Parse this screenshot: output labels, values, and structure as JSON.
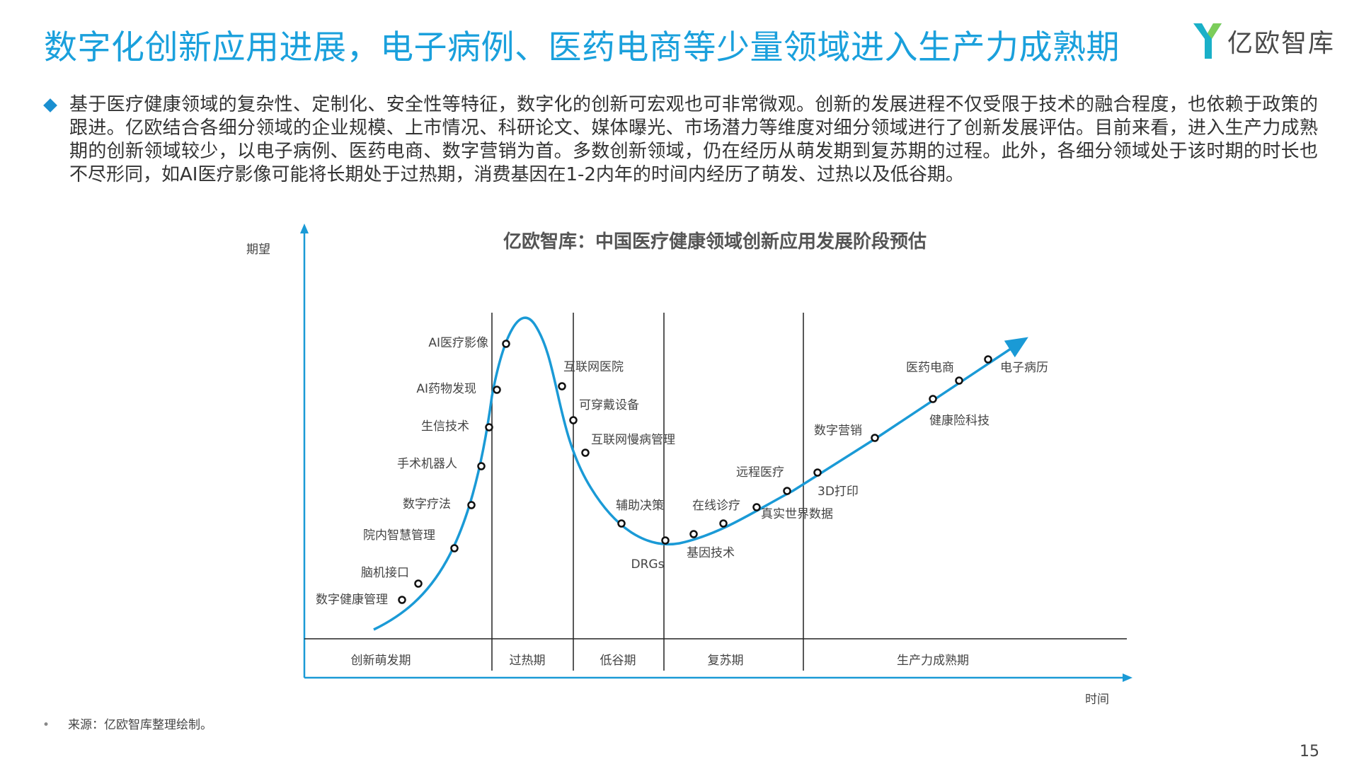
{
  "header": {
    "title": "数字化创新应用进展，电子病例、医药电商等少量领域进入生产力成熟期",
    "logo_text": "亿欧智库"
  },
  "intro": {
    "text": "基于医疗健康领域的复杂性、定制化、安全性等特征，数字化的创新可宏观也可非常微观。创新的发展进程不仅受限于技术的融合程度，也依赖于政策的跟进。亿欧结合各细分领域的企业规模、上市情况、科研论文、媒体曝光、市场潜力等维度对细分领域进行了创新发展评估。目前来看，进入生产力成熟期的创新领域较少，以电子病例、医药电商、数字营销为首。多数创新领域，仍在经历从萌发期到复苏期的过程。此外，各细分领域处于该时期的时长也不尽形同，如AI医疗影像可能将长期处于过热期，消费基因在1-2内年的时间内经历了萌发、过热以及低谷期。"
  },
  "diagram": {
    "title": "亿欧智库：中国医疗健康领域创新应用发展阶段预估",
    "y_axis_label": "期望",
    "x_axis_label": "时间",
    "phases": [
      {
        "label": "创新萌发期"
      },
      {
        "label": "过热期"
      },
      {
        "label": "低谷期"
      },
      {
        "label": "复苏期"
      },
      {
        "label": "生产力成熟期"
      }
    ],
    "points": [
      {
        "label": "数字健康管理",
        "phase": "创新萌发期"
      },
      {
        "label": "脑机接口",
        "phase": "创新萌发期"
      },
      {
        "label": "院内智慧管理",
        "phase": "创新萌发期"
      },
      {
        "label": "数字疗法",
        "phase": "创新萌发期"
      },
      {
        "label": "手术机器人",
        "phase": "创新萌发期"
      },
      {
        "label": "生信技术",
        "phase": "创新萌发期"
      },
      {
        "label": "AI药物发现",
        "phase": "过热期"
      },
      {
        "label": "AI医疗影像",
        "phase": "过热期"
      },
      {
        "label": "互联网医院",
        "phase": "低谷期"
      },
      {
        "label": "可穿戴设备",
        "phase": "低谷期"
      },
      {
        "label": "互联网慢病管理",
        "phase": "低谷期"
      },
      {
        "label": "辅助决策",
        "phase": "低谷期"
      },
      {
        "label": "DRGs",
        "phase": "复苏期"
      },
      {
        "label": "基因技术",
        "phase": "复苏期"
      },
      {
        "label": "在线诊疗",
        "phase": "复苏期"
      },
      {
        "label": "真实世界数据",
        "phase": "复苏期"
      },
      {
        "label": "远程医疗",
        "phase": "复苏期"
      },
      {
        "label": "3D打印",
        "phase": "生产力成熟期"
      },
      {
        "label": "数字营销",
        "phase": "生产力成熟期"
      },
      {
        "label": "健康险科技",
        "phase": "生产力成熟期"
      },
      {
        "label": "医药电商",
        "phase": "生产力成熟期"
      },
      {
        "label": "电子病历",
        "phase": "生产力成熟期"
      }
    ],
    "curve_color": "#1a9ad6"
  },
  "footer": {
    "bullet": "•",
    "source": "来源：亿欧智库整理绘制。",
    "page_number": "15"
  }
}
